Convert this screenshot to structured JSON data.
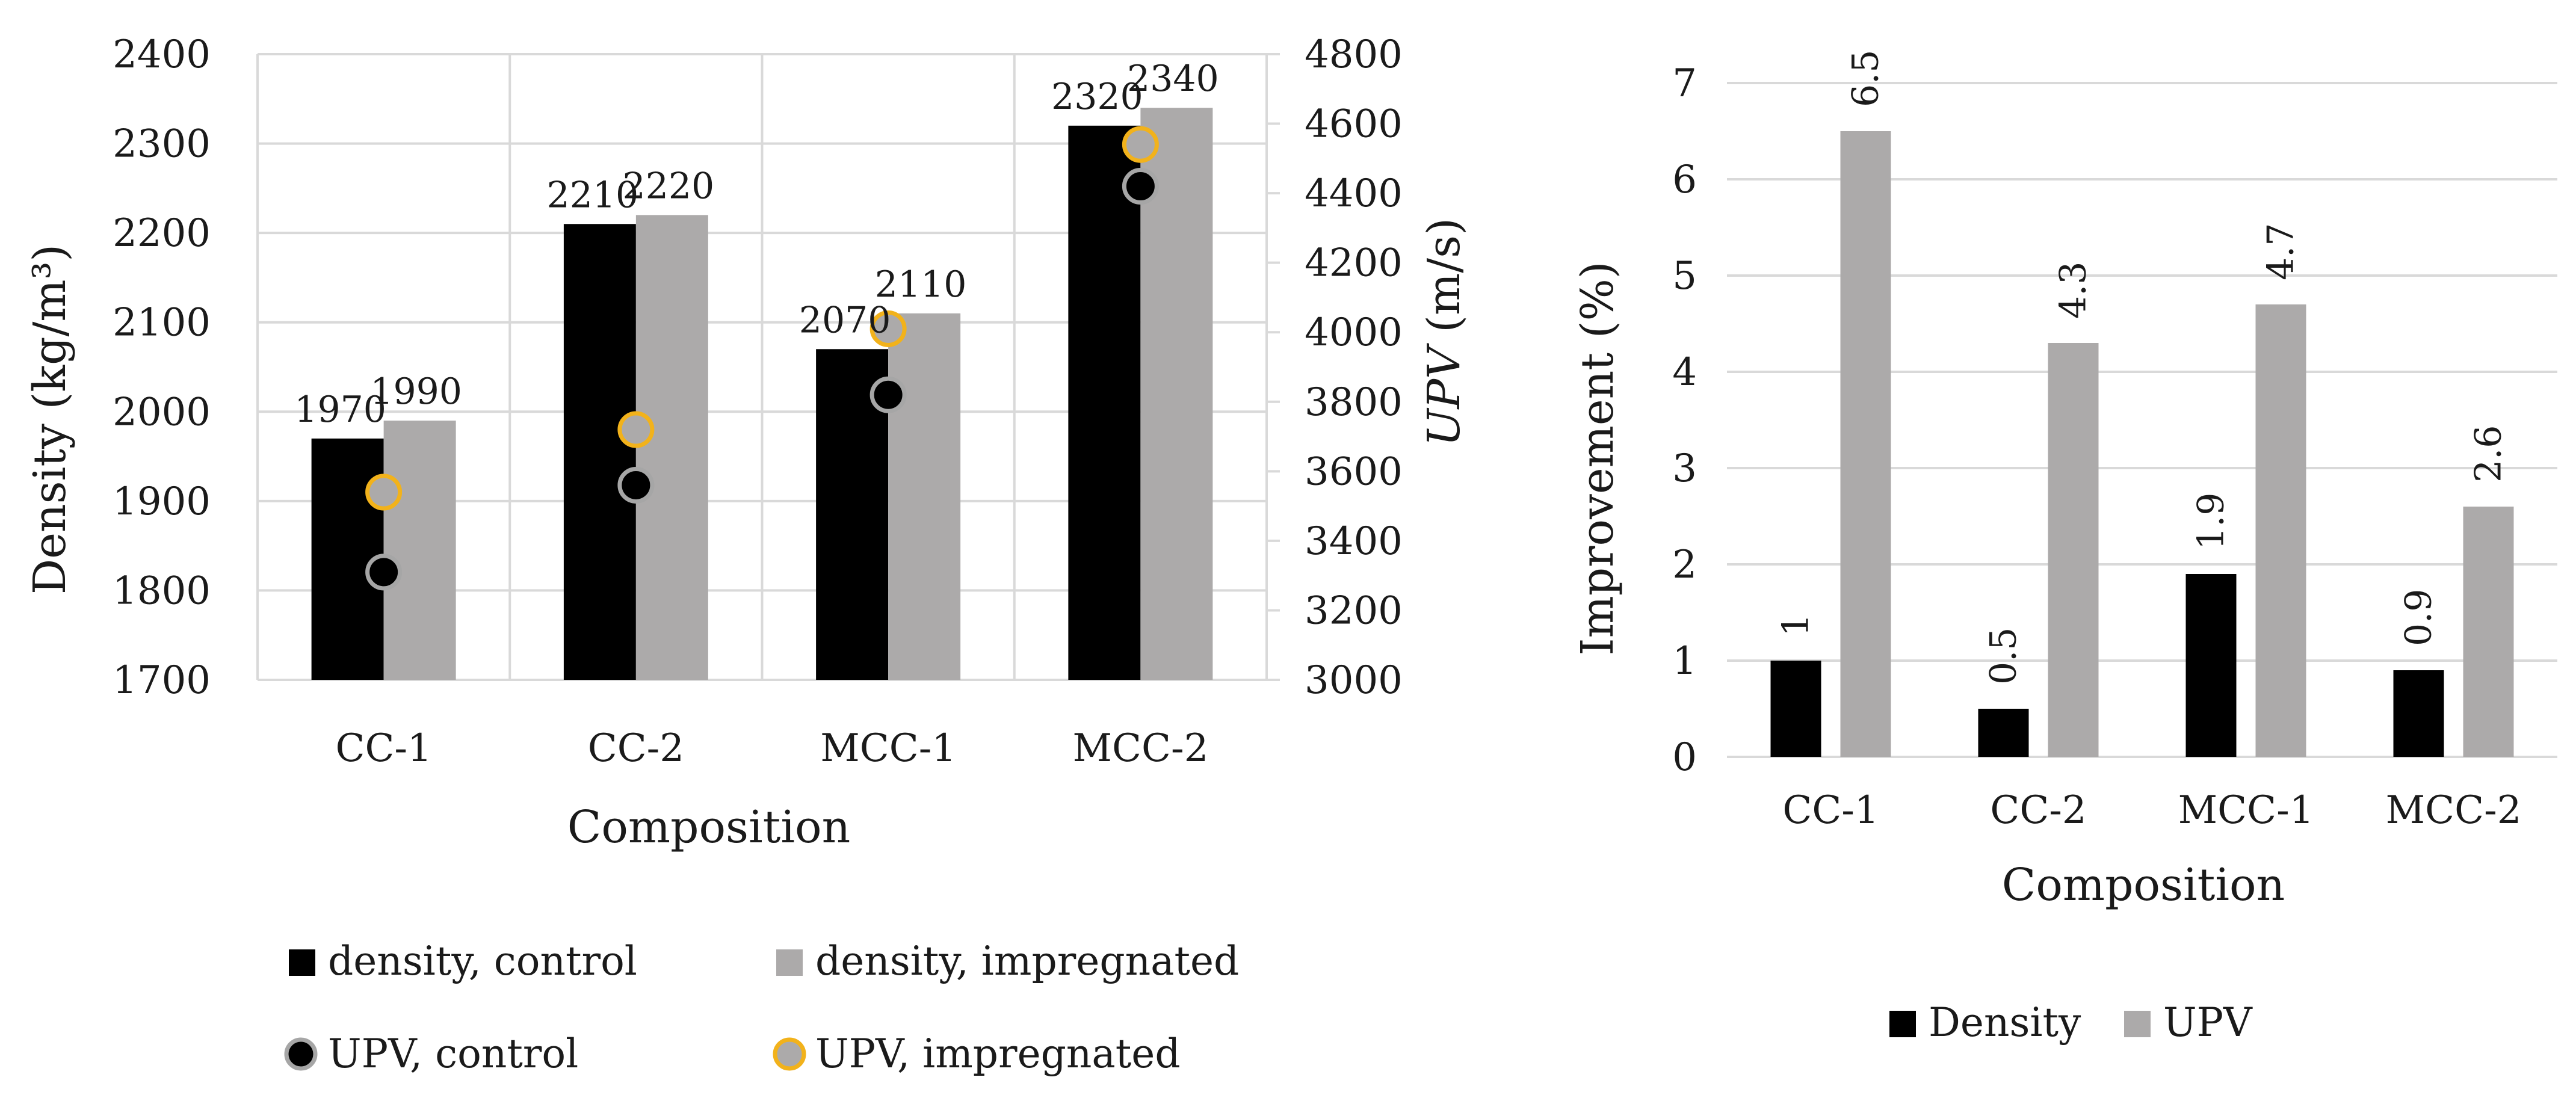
{
  "chart_data": [
    {
      "type": "bar",
      "categories": [
        "CC-1",
        "CC-2",
        "MCC-1",
        "MCC-2"
      ],
      "xlabel": "Composition",
      "ylabel": "Density (kg/m³)",
      "y2label_italic": "UPV",
      "y2label_unit": " (m/s)",
      "ylim": [
        1700,
        2400
      ],
      "yticks": [
        1700,
        1800,
        1900,
        2000,
        2100,
        2200,
        2300,
        2400
      ],
      "y2lim": [
        3000,
        4800
      ],
      "y2ticks": [
        3000,
        3200,
        3400,
        3600,
        3800,
        4000,
        4200,
        4400,
        4600,
        4800
      ],
      "grid": true,
      "series": [
        {
          "name": "density, control",
          "kind": "bar",
          "axis": "left",
          "color": "#000000",
          "values": [
            1970,
            2210,
            2070,
            2320
          ]
        },
        {
          "name": "density, impregnated",
          "kind": "bar",
          "axis": "left",
          "color": "#acaaaa",
          "values": [
            1990,
            2220,
            2110,
            2340
          ]
        },
        {
          "name": "UPV, control",
          "kind": "scatter",
          "axis": "right",
          "color": "#000000",
          "edge": "#a6a6a6",
          "values": [
            3310,
            3560,
            3820,
            4420
          ]
        },
        {
          "name": "UPV, impregnated",
          "kind": "scatter",
          "axis": "right",
          "color": "#acaaaa",
          "edge": "#f2b21b",
          "values": [
            3540,
            3720,
            4010,
            4540
          ]
        }
      ]
    },
    {
      "type": "bar",
      "categories": [
        "CC-1",
        "CC-2",
        "MCC-1",
        "MCC-2"
      ],
      "xlabel": "Composition",
      "ylabel": "Improvement (%)",
      "ylim": [
        0,
        7
      ],
      "yticks": [
        0,
        1,
        2,
        3,
        4,
        5,
        6,
        7
      ],
      "grid": true,
      "legend": "bottom",
      "series": [
        {
          "name": "Density",
          "color": "#000000",
          "values": [
            1,
            0.5,
            1.9,
            0.9
          ]
        },
        {
          "name": "UPV",
          "color": "#acaaaa",
          "values": [
            6.5,
            4.3,
            4.7,
            2.6
          ]
        }
      ]
    }
  ]
}
